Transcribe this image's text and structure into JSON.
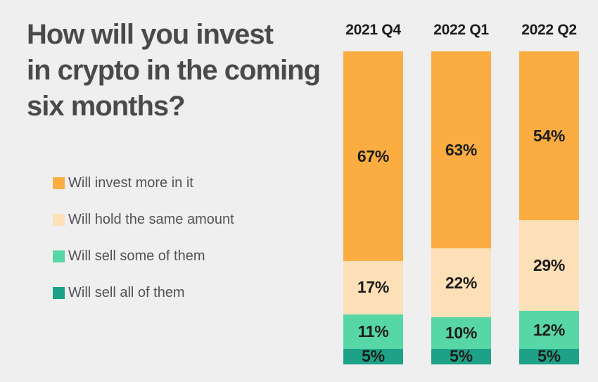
{
  "background": "#efeff0",
  "title": {
    "text": "How will you invest\nin crypto in the coming\nsix months?",
    "color": "#4a4a4d"
  },
  "legend": {
    "items": [
      {
        "label": "Will invest more in it",
        "color": "#fbad41"
      },
      {
        "label": "Will hold the same amount",
        "color": "#fddfb8"
      },
      {
        "label": "Will sell some of them",
        "color": "#57d6a6"
      },
      {
        "label": "Will sell all of them",
        "color": "#1ea287"
      }
    ]
  },
  "chart_data": {
    "type": "bar",
    "stacked": true,
    "orientation": "vertical",
    "title": "How will you invest in crypto in the coming six months?",
    "categories": [
      "2021 Q4",
      "2022 Q1",
      "2022 Q2"
    ],
    "series": [
      {
        "name": "Will invest more in it",
        "color": "#fbad41",
        "values": [
          67,
          63,
          54
        ]
      },
      {
        "name": "Will hold the same amount",
        "color": "#fddfb8",
        "values": [
          17,
          22,
          29
        ]
      },
      {
        "name": "Will sell some of them",
        "color": "#57d6a6",
        "values": [
          11,
          10,
          12
        ]
      },
      {
        "name": "Will sell all of them",
        "color": "#1ea287",
        "values": [
          5,
          5,
          5
        ]
      }
    ],
    "value_suffix": "%",
    "ylim": [
      0,
      100
    ],
    "grid": false,
    "legend_position": "left",
    "data_labels": "inside-center"
  }
}
